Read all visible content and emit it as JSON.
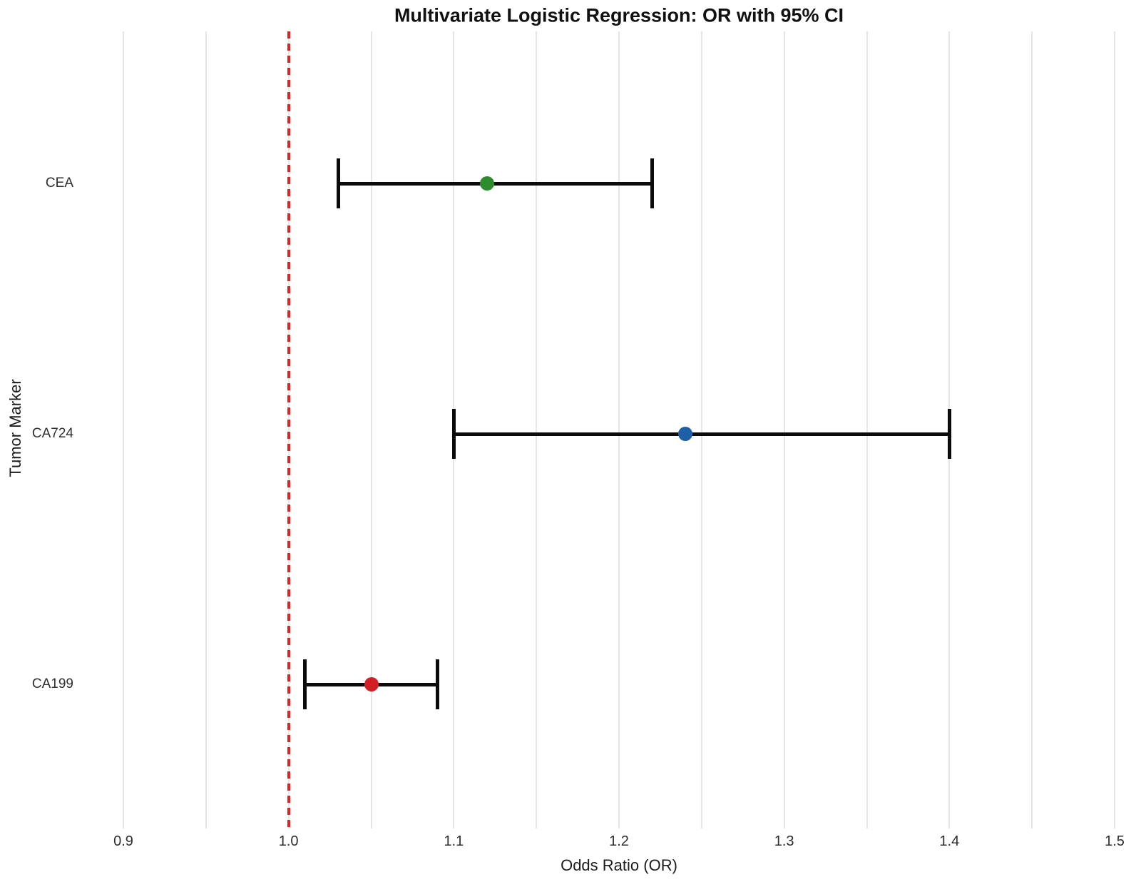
{
  "chart_data": {
    "type": "scatter",
    "subtype": "forest-plot-odds-ratio",
    "title": "Multivariate Logistic Regression: OR with 95% CI",
    "xlabel": "Odds Ratio (OR)",
    "ylabel": "Tumor Marker",
    "xlim": [
      0.9,
      1.5
    ],
    "xtick_labels": [
      "0.9",
      "1.0",
      "1.1",
      "1.2",
      "1.3",
      "1.4",
      "1.5"
    ],
    "xtick_values": [
      0.9,
      1.0,
      1.1,
      1.2,
      1.3,
      1.4,
      1.5
    ],
    "minor_gridline_step": 0.05,
    "grid": "vertical-only",
    "legend": "none",
    "reference_line": {
      "x": 1.0,
      "style": "dashed",
      "color": "#e32222"
    },
    "categories": [
      "CEA",
      "CA724",
      "CA199"
    ],
    "series": [
      {
        "label": "CEA",
        "or": 1.12,
        "ci_low": 1.03,
        "ci_high": 1.22,
        "marker_color": "#2e8b2e"
      },
      {
        "label": "CA724",
        "or": 1.24,
        "ci_low": 1.1,
        "ci_high": 1.4,
        "marker_color": "#1f5fa8"
      },
      {
        "label": "CA199",
        "or": 1.05,
        "ci_low": 1.01,
        "ci_high": 1.09,
        "marker_color": "#d21f26"
      }
    ],
    "colors": {
      "error_bar": "#0b0b0b",
      "gridline": "#e6e6e6",
      "reference": "#e32222",
      "background": "#ffffff",
      "text": "#2e2e2e"
    }
  }
}
